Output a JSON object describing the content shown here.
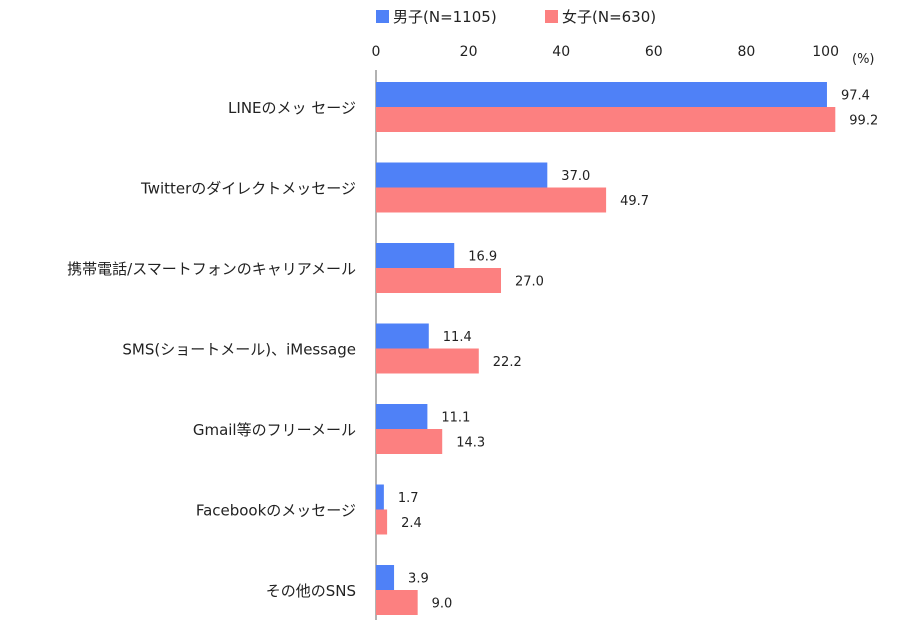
{
  "chart_data": {
    "type": "bar",
    "orientation": "horizontal",
    "unit": "(%)",
    "xlim": [
      0,
      100
    ],
    "xticks": [
      "0",
      "20",
      "40",
      "60",
      "80",
      "100"
    ],
    "legend_position": "top",
    "categories": [
      "LINEのメッ セージ",
      "Twitterのダイレクトメッセージ",
      "携帯電話/スマートフォンのキャリアメール",
      "SMS(ショートメール)、iMessage",
      "Gmail等のフリーメール",
      "Facebookのメッセージ",
      "その他のSNS"
    ],
    "series": [
      {
        "name": "男子(N=1105)",
        "color": "#4f81f7",
        "values": [
          97.4,
          37.0,
          16.9,
          11.4,
          11.1,
          1.7,
          3.9
        ],
        "labels": [
          "97.4",
          "37.0",
          "16.9",
          "11.4",
          "11.1",
          "1.7",
          "3.9"
        ]
      },
      {
        "name": "女子(N=630)",
        "color": "#fc8080",
        "values": [
          99.2,
          49.7,
          27.0,
          22.2,
          14.3,
          2.4,
          9.0
        ],
        "labels": [
          "99.2",
          "49.7",
          "27.0",
          "22.2",
          "14.3",
          "2.4",
          "9.0"
        ]
      }
    ]
  }
}
